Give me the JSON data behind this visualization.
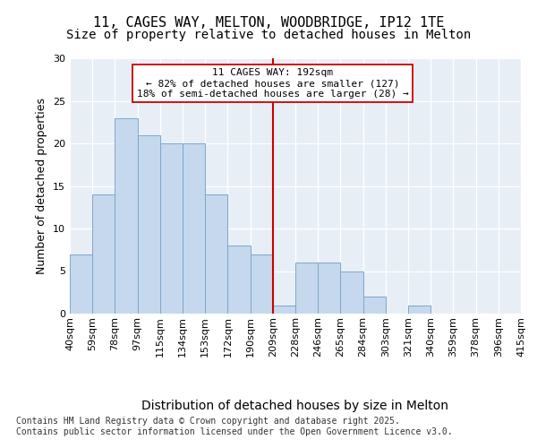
{
  "title": "11, CAGES WAY, MELTON, WOODBRIDGE, IP12 1TE",
  "subtitle": "Size of property relative to detached houses in Melton",
  "xlabel": "Distribution of detached houses by size in Melton",
  "ylabel": "Number of detached properties",
  "bar_values": [
    7,
    14,
    23,
    21,
    20,
    20,
    14,
    8,
    7,
    1,
    6,
    6,
    5,
    2,
    0,
    1,
    0,
    0,
    0,
    0
  ],
  "all_xtick_labels": [
    "40sqm",
    "59sqm",
    "78sqm",
    "97sqm",
    "115sqm",
    "134sqm",
    "153sqm",
    "172sqm",
    "190sqm",
    "209sqm",
    "228sqm",
    "246sqm",
    "265sqm",
    "284sqm",
    "303sqm",
    "321sqm",
    "340sqm",
    "359sqm",
    "378sqm",
    "396sqm",
    "415sqm"
  ],
  "bar_color": "#c5d8ed",
  "bar_edge_color": "#7aa8cc",
  "vline_color": "#cc0000",
  "vline_x": 8.5,
  "annotation_text": "11 CAGES WAY: 192sqm\n← 82% of detached houses are smaller (127)\n18% of semi-detached houses are larger (28) →",
  "annotation_box_edgecolor": "#cc0000",
  "ylim": [
    0,
    30
  ],
  "yticks": [
    0,
    5,
    10,
    15,
    20,
    25,
    30
  ],
  "background_color": "#e8eef5",
  "footer_text": "Contains HM Land Registry data © Crown copyright and database right 2025.\nContains public sector information licensed under the Open Government Licence v3.0.",
  "title_fontsize": 11,
  "subtitle_fontsize": 10,
  "ylabel_fontsize": 9,
  "xlabel_fontsize": 10,
  "tick_fontsize": 8,
  "footer_fontsize": 7,
  "ann_fontsize": 8
}
